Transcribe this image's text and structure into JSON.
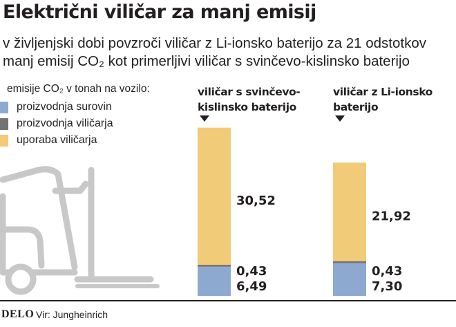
{
  "header": {
    "title": "Električni viličar za manj emisij",
    "subtitle": "v življenjski dobi povzroči viličar z Li-ionsko baterijo za 21 odstotkov manj emisij CO₂ kot primerljivi viličar s svinčevo-kislinsko baterijo"
  },
  "legend": {
    "title": "emisije CO₂ v tonah na vozilo:",
    "items": [
      {
        "label": "proizvodnja surovin",
        "color": "#8ea9cf"
      },
      {
        "label": "proizvodnja viličarja",
        "color": "#747474"
      },
      {
        "label": "uporaba viličarja",
        "color": "#f2cb78"
      }
    ]
  },
  "chart_data": {
    "type": "bar",
    "stacked": true,
    "categories": [
      "viličar s svinčevo-kislinsko baterijo",
      "viličar z Li-ionsko baterijo"
    ],
    "category_labels": [
      [
        "viličar s svinčevo-",
        "kislinsko baterijo"
      ],
      [
        "viličar z Li-ionsko",
        "baterijo"
      ]
    ],
    "series": [
      {
        "name": "proizvodnja surovin",
        "values": [
          6.49,
          7.3
        ],
        "labels": [
          "6,49",
          "7,30"
        ],
        "color": "#8ea9cf"
      },
      {
        "name": "proizvodnja viličarja",
        "values": [
          0.43,
          0.43
        ],
        "labels": [
          "0,43",
          "0,43"
        ],
        "color": "#747474"
      },
      {
        "name": "uporaba viličarja",
        "values": [
          30.52,
          21.92
        ],
        "labels": [
          "30,52",
          "21,92"
        ],
        "color": "#f2cb78"
      }
    ],
    "unit": "tone CO₂ na vozilo",
    "grid": false,
    "legend_position": "top-left"
  },
  "footer": {
    "brand": "DELO",
    "source": "Vir: Jungheinrich"
  },
  "icons": {
    "illustration": "forklift-icon"
  }
}
